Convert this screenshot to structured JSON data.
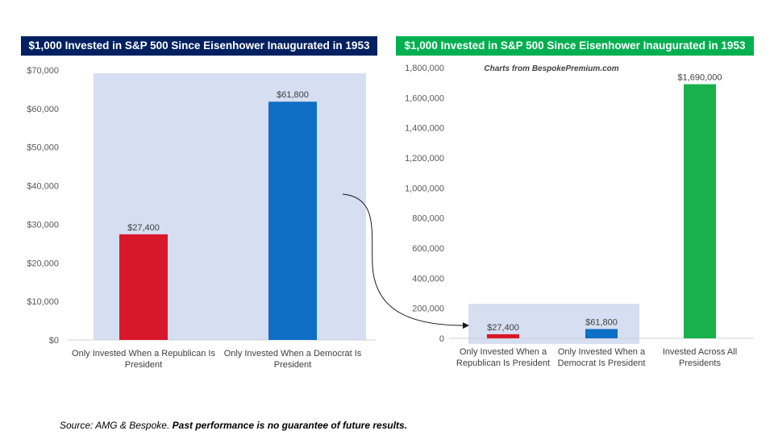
{
  "colors": {
    "title_background": "#002060",
    "title_background_right": "#00B050",
    "republican": "#D9172B",
    "democrat": "#0E6FC4",
    "all": "#18B14C",
    "highlight_box": "#D6DEF1"
  },
  "chart_data": [
    {
      "type": "bar",
      "title": "$1,000 Invested in S&P 500 Since Eisenhower Inaugurated in 1953",
      "categories": [
        [
          "Only Invested When a Republican Is",
          "President"
        ],
        [
          "Only Invested When a Democrat Is",
          "President"
        ]
      ],
      "values": [
        27400,
        61800
      ],
      "data_labels": [
        "$27,400",
        "$61,800"
      ],
      "bar_colors": [
        "#D9172B",
        "#0E6FC4"
      ],
      "ylim": [
        0,
        70000
      ],
      "yticks": [
        0,
        10000,
        20000,
        30000,
        40000,
        50000,
        60000,
        70000
      ],
      "ytick_labels": [
        "$0",
        "$10,000",
        "$20,000",
        "$30,000",
        "$40,000",
        "$50,000",
        "$60,000",
        "$70,000"
      ],
      "grid": false,
      "legend": "none"
    },
    {
      "type": "bar",
      "title": "$1,000 Invested in S&P 500 Since Eisenhower Inaugurated in 1953",
      "annotation": "Charts from BespokePremium.com",
      "categories": [
        [
          "Only Invested When a",
          "Republican Is President"
        ],
        [
          "Only Invested When a",
          "Democrat Is President"
        ],
        [
          "Invested Across All",
          "Presidents"
        ]
      ],
      "values": [
        27400,
        61800,
        1690000
      ],
      "data_labels": [
        "$27,400",
        "$61,800",
        "$1,690,000"
      ],
      "bar_colors": [
        "#D9172B",
        "#0E6FC4",
        "#18B14C"
      ],
      "ylim": [
        0,
        1800000
      ],
      "yticks": [
        0,
        200000,
        400000,
        600000,
        800000,
        1000000,
        1200000,
        1400000,
        1600000,
        1800000
      ],
      "ytick_labels": [
        "0",
        "200,000",
        "400,000",
        "600,000",
        "800,000",
        "1,000,000",
        "1,200,000",
        "1,400,000",
        "1,600,000",
        "1,800,000"
      ],
      "grid": false,
      "legend": "none"
    }
  ],
  "footer": {
    "source": "Source: AMG & Bespoke.",
    "disclaimer": "Past performance is no guarantee of future results."
  }
}
